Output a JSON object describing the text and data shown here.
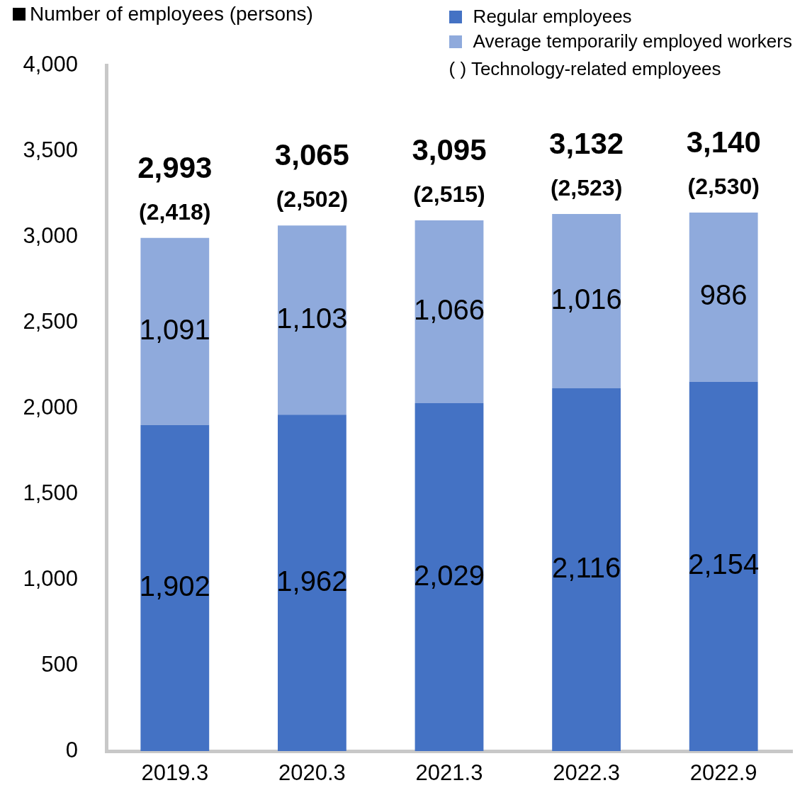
{
  "chart_data": {
    "type": "bar",
    "title": "Number of employees (persons)",
    "categories": [
      "2019.3",
      "2020.3",
      "2021.3",
      "2022.3",
      "2022.9"
    ],
    "series": [
      {
        "name": "Regular employees",
        "color": "#4472c4",
        "values": [
          1902,
          1962,
          2029,
          2116,
          2154
        ],
        "value_labels": [
          "1,902",
          "1,962",
          "2,029",
          "2,116",
          "2,154"
        ]
      },
      {
        "name": "Average temporarily employed workers",
        "color": "#8faadc",
        "values": [
          1091,
          1103,
          1066,
          1016,
          986
        ],
        "value_labels": [
          "1,091",
          "1,103",
          "1,066",
          "1,016",
          "986"
        ]
      }
    ],
    "stacked": true,
    "totals": [
      "2,993",
      "3,065",
      "3,095",
      "3,132",
      "3,140"
    ],
    "ylim": [
      0,
      4000
    ],
    "yticks": [
      {
        "value": 0,
        "label": "0"
      },
      {
        "value": 500,
        "label": "500"
      },
      {
        "value": 1000,
        "label": "1,000"
      },
      {
        "value": 1500,
        "label": "1,500"
      },
      {
        "value": 2000,
        "label": "2,000"
      },
      {
        "value": 2500,
        "label": "2,500"
      },
      {
        "value": 3000,
        "label": "3,000"
      },
      {
        "value": 3500,
        "label": "3,500"
      },
      {
        "value": 4000,
        "label": "4,000"
      }
    ],
    "grid": false,
    "legend": "top right",
    "annotations": [
      "( ) Technology-related employees",
      {
        "text": "(2,418)",
        "x": "2019.3",
        "y": 2993
      },
      {
        "text": "(2,502)",
        "x": "2020.3",
        "y": 3065
      },
      {
        "text": "(2,515)",
        "x": "2021.3",
        "y": 3095
      },
      {
        "text": "(2,523)",
        "x": "2022.3",
        "y": 3132
      },
      {
        "text": "(2,530)",
        "x": "2022.9",
        "y": 3140
      }
    ]
  }
}
